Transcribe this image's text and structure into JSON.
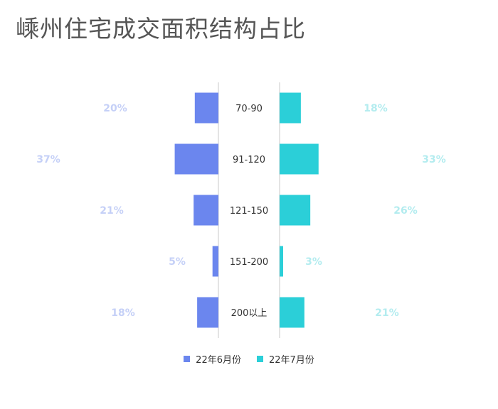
{
  "title": "嵊州住宅成交面积结构占比",
  "colors": {
    "left": "#6b86ee",
    "right": "#2bcfd8",
    "left_label": "#c5d0f7",
    "right_label": "#b3ecef"
  },
  "chart_data": {
    "type": "bar",
    "orientation": "butterfly",
    "categories": [
      "70-90",
      "91-120",
      "121-150",
      "151-200",
      "200以上"
    ],
    "series": [
      {
        "name": "22年6月份",
        "values": [
          20,
          37,
          21,
          5,
          18
        ],
        "labels": [
          "20%",
          "37%",
          "21%",
          "5%",
          "18%"
        ]
      },
      {
        "name": "22年7月份",
        "values": [
          18,
          33,
          26,
          3,
          21
        ],
        "labels": [
          "18%",
          "33%",
          "26%",
          "3%",
          "21%"
        ]
      }
    ],
    "unit": "%",
    "legend_position": "bottom"
  }
}
